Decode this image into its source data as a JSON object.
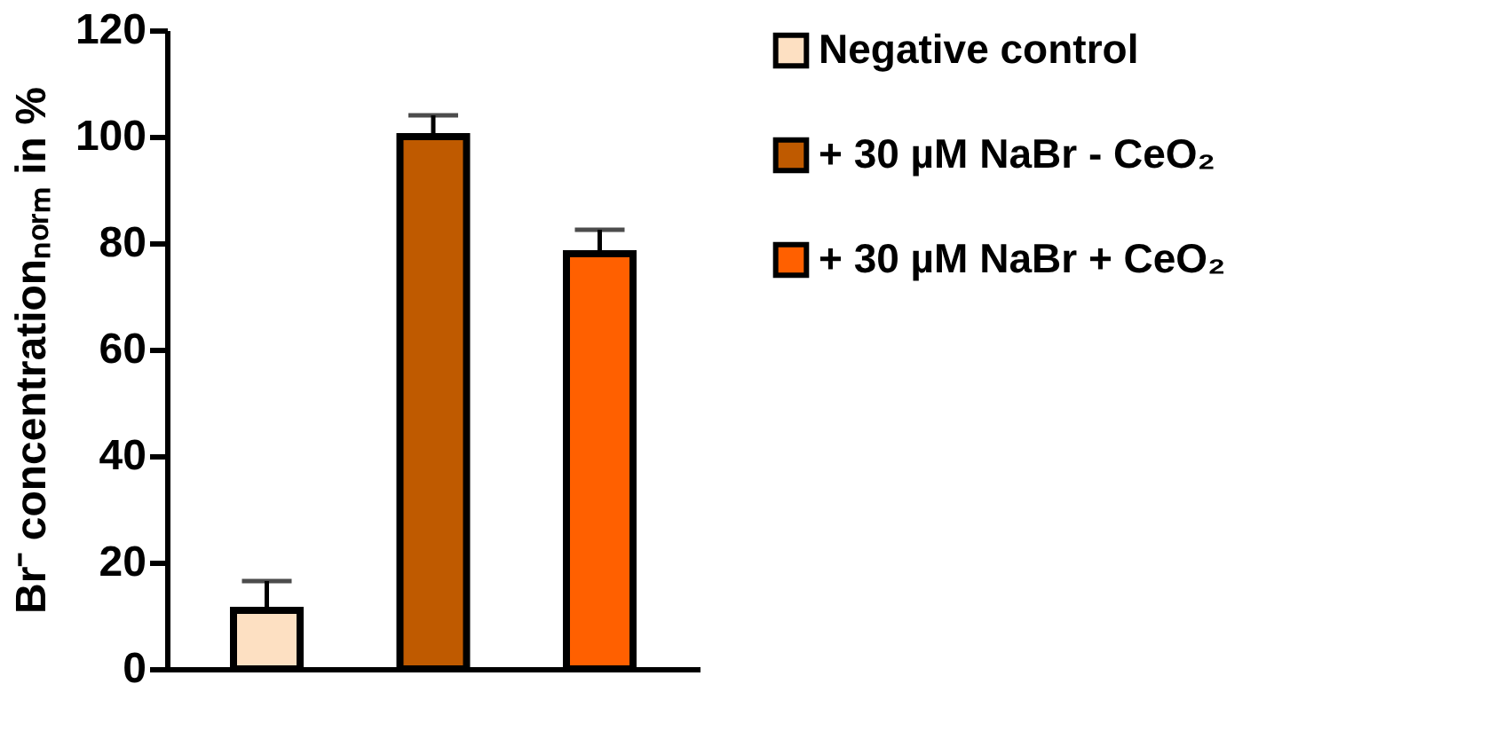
{
  "chart_data": {
    "type": "bar",
    "ylabel": "Br⁻ concentrationₙₒᵣₘ in %",
    "categories": [
      null,
      null,
      null
    ],
    "series": [
      {
        "name": "Negative control",
        "color": "#fde0c2",
        "values": [
          11,
          null,
          null
        ],
        "errors": [
          5.5,
          null,
          null
        ]
      },
      {
        "name": "+ 30 µM NaBr - CeO₂",
        "color": "#bf5a00",
        "values": [
          null,
          100,
          null
        ],
        "errors": [
          null,
          4,
          null
        ]
      },
      {
        "name": "+ 30 µM NaBr + CeO₂",
        "color": "#ff6000",
        "values": [
          null,
          null,
          78
        ],
        "errors": [
          null,
          null,
          4.5
        ]
      }
    ],
    "ylim": [
      0,
      120
    ],
    "yticks": [
      0,
      20,
      40,
      60,
      80,
      100,
      120
    ],
    "grid": false,
    "legend": "right",
    "tick_labels": "y"
  }
}
